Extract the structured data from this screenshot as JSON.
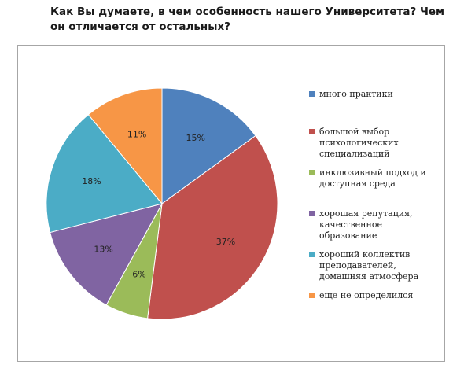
{
  "chart_data": {
    "type": "pie",
    "title": "Как Вы думаете, в чем особенность нашего Университета? Чем он отличается от остальных?",
    "categories": [
      "много практики",
      "большой выбор психологических специализаций",
      "инклюзивный подход и доступная среда",
      "хорошая репутация, качественное образование",
      "хороший коллектив преподавателей, домашняя атмосфера",
      "еще не определился"
    ],
    "values": [
      15,
      37,
      6,
      13,
      18,
      11
    ],
    "value_labels": [
      "15%",
      "37%",
      "6%",
      "13%",
      "18%",
      "11%"
    ],
    "colors": [
      "#4f81bd",
      "#c0504d",
      "#9bbb59",
      "#8064a2",
      "#4bacc6",
      "#f79646"
    ],
    "legend_position": "right",
    "grid": false
  }
}
